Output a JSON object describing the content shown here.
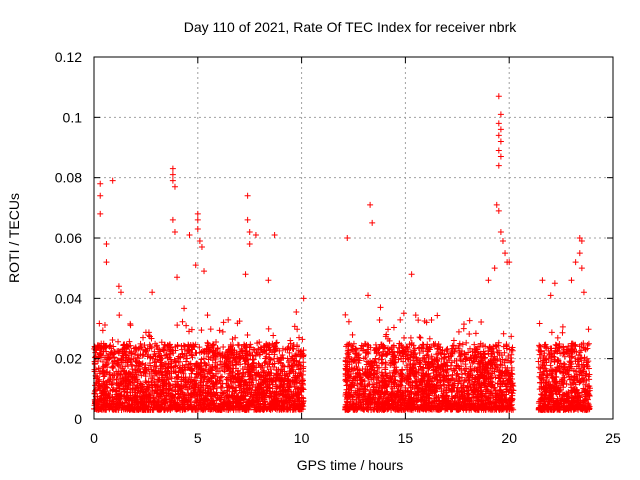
{
  "chart_data": {
    "type": "scatter",
    "title": "Day 110 of 2021, Rate Of TEC Index for receiver nbrk",
    "xlabel": "GPS time / hours",
    "ylabel": "ROTI / TECUs",
    "xlim": [
      0,
      25
    ],
    "ylim": [
      0,
      0.12
    ],
    "xticks": [
      0,
      5,
      10,
      15,
      20,
      25
    ],
    "xtick_labels": [
      "0",
      "5",
      "10",
      "15",
      "20",
      "25"
    ],
    "yticks": [
      0,
      0.02,
      0.04,
      0.06,
      0.08,
      0.1,
      0.12
    ],
    "ytick_labels": [
      "0",
      "0.02",
      "0.04",
      "0.06",
      "0.08",
      "0.1",
      "0.12"
    ],
    "grid": true,
    "marker": "plus",
    "series_color": "#ff0000",
    "data_segments": [
      {
        "x_start": 0.0,
        "x_end": 10.1,
        "typical_min": 0.003,
        "typical_max": 0.025
      },
      {
        "x_start": 12.1,
        "x_end": 20.2,
        "typical_min": 0.003,
        "typical_max": 0.025
      },
      {
        "x_start": 21.4,
        "x_end": 23.9,
        "typical_min": 0.003,
        "typical_max": 0.025
      }
    ],
    "notable_points": [
      {
        "x": 0.3,
        "y": 0.078
      },
      {
        "x": 0.3,
        "y": 0.074
      },
      {
        "x": 0.3,
        "y": 0.068
      },
      {
        "x": 0.9,
        "y": 0.079
      },
      {
        "x": 0.6,
        "y": 0.058
      },
      {
        "x": 0.6,
        "y": 0.052
      },
      {
        "x": 1.2,
        "y": 0.044
      },
      {
        "x": 1.3,
        "y": 0.042
      },
      {
        "x": 2.8,
        "y": 0.042
      },
      {
        "x": 3.8,
        "y": 0.083
      },
      {
        "x": 3.8,
        "y": 0.081
      },
      {
        "x": 3.8,
        "y": 0.079
      },
      {
        "x": 3.9,
        "y": 0.077
      },
      {
        "x": 3.8,
        "y": 0.066
      },
      {
        "x": 3.9,
        "y": 0.062
      },
      {
        "x": 4.6,
        "y": 0.061
      },
      {
        "x": 5.0,
        "y": 0.068
      },
      {
        "x": 5.0,
        "y": 0.066
      },
      {
        "x": 5.0,
        "y": 0.063
      },
      {
        "x": 5.1,
        "y": 0.059
      },
      {
        "x": 5.2,
        "y": 0.057
      },
      {
        "x": 4.9,
        "y": 0.051
      },
      {
        "x": 5.3,
        "y": 0.049
      },
      {
        "x": 4.0,
        "y": 0.047
      },
      {
        "x": 7.4,
        "y": 0.074
      },
      {
        "x": 7.4,
        "y": 0.066
      },
      {
        "x": 7.5,
        "y": 0.062
      },
      {
        "x": 7.5,
        "y": 0.058
      },
      {
        "x": 7.8,
        "y": 0.061
      },
      {
        "x": 8.7,
        "y": 0.061
      },
      {
        "x": 7.3,
        "y": 0.048
      },
      {
        "x": 8.4,
        "y": 0.046
      },
      {
        "x": 10.1,
        "y": 0.04
      },
      {
        "x": 12.2,
        "y": 0.06
      },
      {
        "x": 13.3,
        "y": 0.071
      },
      {
        "x": 13.4,
        "y": 0.065
      },
      {
        "x": 15.3,
        "y": 0.048
      },
      {
        "x": 13.2,
        "y": 0.041
      },
      {
        "x": 13.8,
        "y": 0.037
      },
      {
        "x": 19.5,
        "y": 0.107
      },
      {
        "x": 19.6,
        "y": 0.101
      },
      {
        "x": 19.5,
        "y": 0.098
      },
      {
        "x": 19.6,
        "y": 0.096
      },
      {
        "x": 19.5,
        "y": 0.094
      },
      {
        "x": 19.6,
        "y": 0.092
      },
      {
        "x": 19.5,
        "y": 0.089
      },
      {
        "x": 19.6,
        "y": 0.087
      },
      {
        "x": 19.5,
        "y": 0.084
      },
      {
        "x": 19.4,
        "y": 0.071
      },
      {
        "x": 19.5,
        "y": 0.069
      },
      {
        "x": 19.6,
        "y": 0.062
      },
      {
        "x": 19.7,
        "y": 0.059
      },
      {
        "x": 19.8,
        "y": 0.055
      },
      {
        "x": 19.9,
        "y": 0.052
      },
      {
        "x": 20.0,
        "y": 0.052
      },
      {
        "x": 19.3,
        "y": 0.05
      },
      {
        "x": 19.0,
        "y": 0.046
      },
      {
        "x": 21.6,
        "y": 0.046
      },
      {
        "x": 22.2,
        "y": 0.045
      },
      {
        "x": 22.0,
        "y": 0.041
      },
      {
        "x": 23.4,
        "y": 0.06
      },
      {
        "x": 23.5,
        "y": 0.059
      },
      {
        "x": 23.4,
        "y": 0.055
      },
      {
        "x": 23.2,
        "y": 0.052
      },
      {
        "x": 23.5,
        "y": 0.05
      },
      {
        "x": 23.0,
        "y": 0.046
      },
      {
        "x": 23.6,
        "y": 0.042
      }
    ]
  }
}
